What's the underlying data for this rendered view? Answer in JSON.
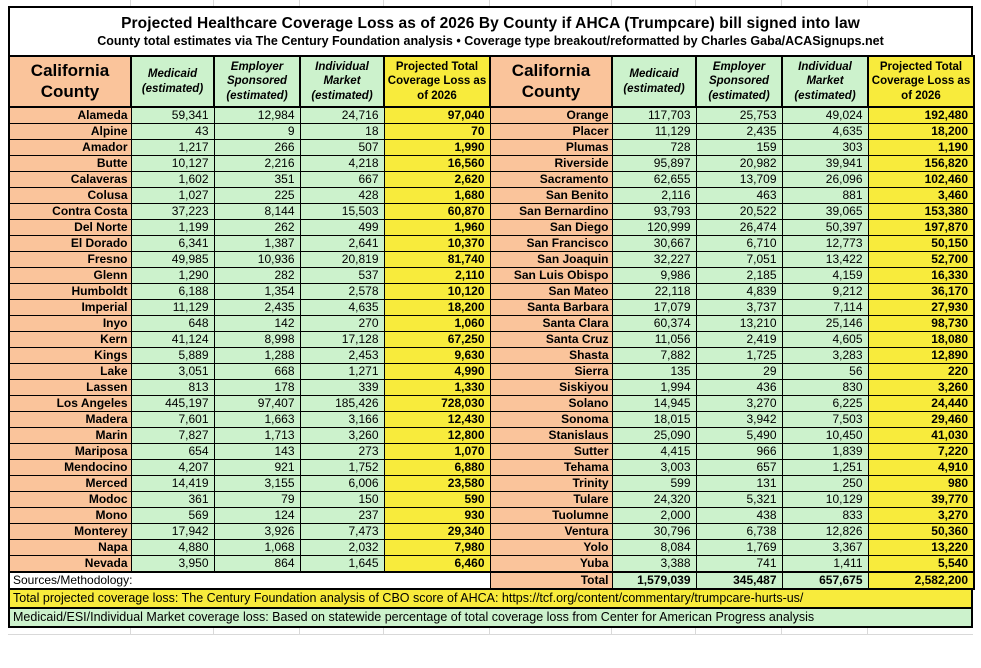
{
  "title_block": {
    "title": "Projected Healthcare Coverage Loss as of 2026 By County if AHCA (Trumpcare) bill signed into law",
    "subtitle": "County total estimates via The Century Foundation analysis • Coverage type breakout/reformatted by Charles Gaba/ACASignups.net"
  },
  "table": {
    "headers": {
      "county": "California County",
      "medicaid": "Medicaid (estimated)",
      "employer": "Employer Sponsored (estimated)",
      "individual": "Individual Market (estimated)",
      "total": "Projected Total Coverage Loss as of 2026"
    },
    "sources_label": "Sources/Methodology:",
    "total_label": "Total"
  },
  "footnotes": {
    "total_note": "Total projected coverage loss: The Century Foundation analysis of CBO score of AHCA: https://tcf.org/content/commentary/trumpcare-hurts-us/",
    "breakout_note": "Medicaid/ESI/Individual Market coverage loss: Based on statewide percentage of total coverage loss from Center for American Progress analysis"
  },
  "colors": {
    "page_bg": "#FFFFFF",
    "county_bg": "#FAC49B",
    "data_bg": "#CCF2CC",
    "total_bg": "#F8EB3C",
    "faint_grid": "#D9D9D9",
    "border": "#000000"
  },
  "chart_data": {
    "type": "table",
    "title": "Projected Healthcare Coverage Loss as of 2026 By County if AHCA (Trumpcare) bill signed into law",
    "columns": [
      "California County",
      "Medicaid (estimated)",
      "Employer Sponsored (estimated)",
      "Individual Market (estimated)",
      "Projected Total Coverage Loss as of 2026"
    ],
    "left_rows": [
      [
        "Alameda",
        59341,
        12984,
        24716,
        97040
      ],
      [
        "Alpine",
        43,
        9,
        18,
        70
      ],
      [
        "Amador",
        1217,
        266,
        507,
        1990
      ],
      [
        "Butte",
        10127,
        2216,
        4218,
        16560
      ],
      [
        "Calaveras",
        1602,
        351,
        667,
        2620
      ],
      [
        "Colusa",
        1027,
        225,
        428,
        1680
      ],
      [
        "Contra Costa",
        37223,
        8144,
        15503,
        60870
      ],
      [
        "Del Norte",
        1199,
        262,
        499,
        1960
      ],
      [
        "El Dorado",
        6341,
        1387,
        2641,
        10370
      ],
      [
        "Fresno",
        49985,
        10936,
        20819,
        81740
      ],
      [
        "Glenn",
        1290,
        282,
        537,
        2110
      ],
      [
        "Humboldt",
        6188,
        1354,
        2578,
        10120
      ],
      [
        "Imperial",
        11129,
        2435,
        4635,
        18200
      ],
      [
        "Inyo",
        648,
        142,
        270,
        1060
      ],
      [
        "Kern",
        41124,
        8998,
        17128,
        67250
      ],
      [
        "Kings",
        5889,
        1288,
        2453,
        9630
      ],
      [
        "Lake",
        3051,
        668,
        1271,
        4990
      ],
      [
        "Lassen",
        813,
        178,
        339,
        1330
      ],
      [
        "Los Angeles",
        445197,
        97407,
        185426,
        728030
      ],
      [
        "Madera",
        7601,
        1663,
        3166,
        12430
      ],
      [
        "Marin",
        7827,
        1713,
        3260,
        12800
      ],
      [
        "Mariposa",
        654,
        143,
        273,
        1070
      ],
      [
        "Mendocino",
        4207,
        921,
        1752,
        6880
      ],
      [
        "Merced",
        14419,
        3155,
        6006,
        23580
      ],
      [
        "Modoc",
        361,
        79,
        150,
        590
      ],
      [
        "Mono",
        569,
        124,
        237,
        930
      ],
      [
        "Monterey",
        17942,
        3926,
        7473,
        29340
      ],
      [
        "Napa",
        4880,
        1068,
        2032,
        7980
      ],
      [
        "Nevada",
        3950,
        864,
        1645,
        6460
      ]
    ],
    "right_rows": [
      [
        "Orange",
        117703,
        25753,
        49024,
        192480
      ],
      [
        "Placer",
        11129,
        2435,
        4635,
        18200
      ],
      [
        "Plumas",
        728,
        159,
        303,
        1190
      ],
      [
        "Riverside",
        95897,
        20982,
        39941,
        156820
      ],
      [
        "Sacramento",
        62655,
        13709,
        26096,
        102460
      ],
      [
        "San Benito",
        2116,
        463,
        881,
        3460
      ],
      [
        "San Bernardino",
        93793,
        20522,
        39065,
        153380
      ],
      [
        "San Diego",
        120999,
        26474,
        50397,
        197870
      ],
      [
        "San Francisco",
        30667,
        6710,
        12773,
        50150
      ],
      [
        "San Joaquin",
        32227,
        7051,
        13422,
        52700
      ],
      [
        "San Luis Obispo",
        9986,
        2185,
        4159,
        16330
      ],
      [
        "San Mateo",
        22118,
        4839,
        9212,
        36170
      ],
      [
        "Santa Barbara",
        17079,
        3737,
        7114,
        27930
      ],
      [
        "Santa Clara",
        60374,
        13210,
        25146,
        98730
      ],
      [
        "Santa Cruz",
        11056,
        2419,
        4605,
        18080
      ],
      [
        "Shasta",
        7882,
        1725,
        3283,
        12890
      ],
      [
        "Sierra",
        135,
        29,
        56,
        220
      ],
      [
        "Siskiyou",
        1994,
        436,
        830,
        3260
      ],
      [
        "Solano",
        14945,
        3270,
        6225,
        24440
      ],
      [
        "Sonoma",
        18015,
        3942,
        7503,
        29460
      ],
      [
        "Stanislaus",
        25090,
        5490,
        10450,
        41030
      ],
      [
        "Sutter",
        4415,
        966,
        1839,
        7220
      ],
      [
        "Tehama",
        3003,
        657,
        1251,
        4910
      ],
      [
        "Trinity",
        599,
        131,
        250,
        980
      ],
      [
        "Tulare",
        24320,
        5321,
        10129,
        39770
      ],
      [
        "Tuolumne",
        2000,
        438,
        833,
        3270
      ],
      [
        "Ventura",
        30796,
        6738,
        12826,
        50360
      ],
      [
        "Yolo",
        8084,
        1769,
        3367,
        13220
      ],
      [
        "Yuba",
        3388,
        741,
        1411,
        5540
      ]
    ],
    "total_row": {
      "label": "Total",
      "medicaid": 1579039,
      "employer": 345487,
      "individual": 657675,
      "total": 2582200
    }
  }
}
